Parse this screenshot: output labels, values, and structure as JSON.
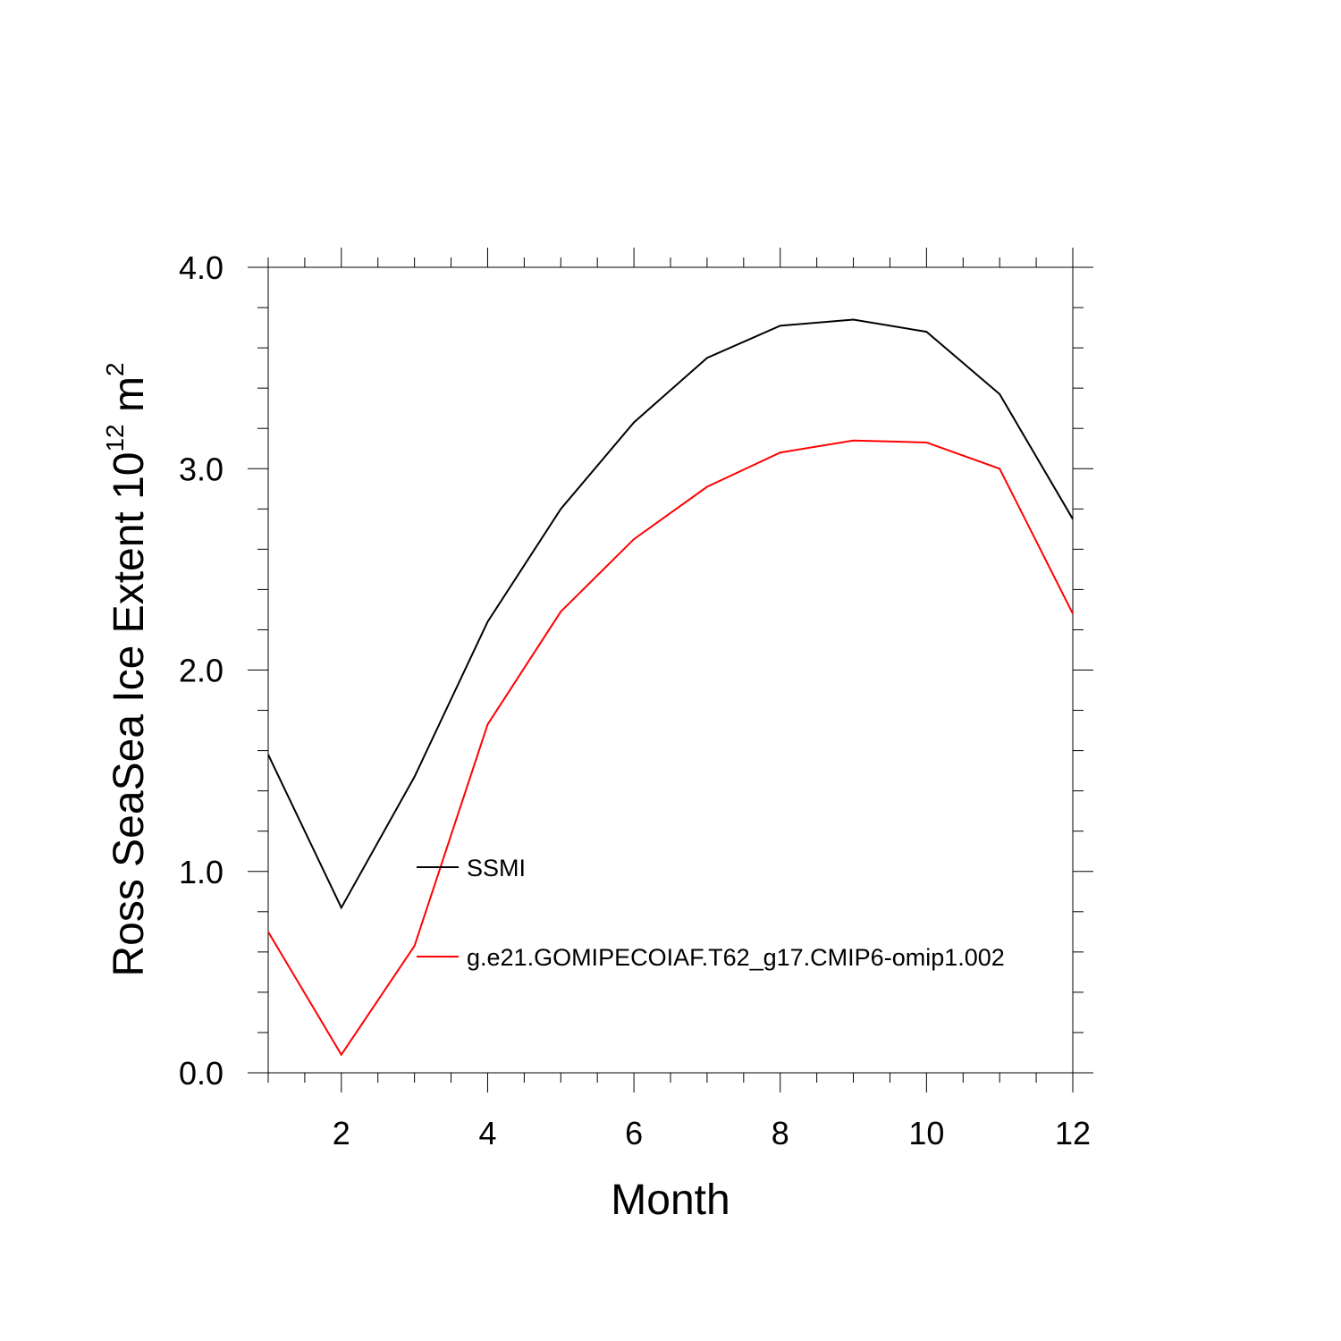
{
  "chart_data": {
    "type": "line",
    "xlabel": "Month",
    "ylabel": {
      "prefix": "Ross SeaSea Ice Extent 10",
      "exponent": "12",
      "unit": " m",
      "unit_exponent": "2"
    },
    "x": [
      1,
      2,
      3,
      4,
      5,
      6,
      7,
      8,
      9,
      10,
      11,
      12
    ],
    "xlim": [
      1,
      12
    ],
    "ylim": [
      0,
      4
    ],
    "x_ticks": [
      2,
      4,
      6,
      8,
      10,
      12
    ],
    "x_tick_labels": [
      "2",
      "4",
      "6",
      "8",
      "10",
      "12"
    ],
    "y_ticks": [
      0,
      1,
      2,
      3,
      4
    ],
    "y_tick_labels": [
      "0.0",
      "1.0",
      "2.0",
      "3.0",
      "4.0"
    ],
    "grid": false,
    "legend_position": "inside-center-left",
    "series": [
      {
        "name": "SSMI",
        "color": "#000000",
        "values": [
          1.58,
          0.82,
          1.47,
          2.24,
          2.8,
          3.23,
          3.55,
          3.71,
          3.74,
          3.68,
          3.37,
          2.75
        ]
      },
      {
        "name": "g.e21.GOMIPECOIAF.T62_g17.CMIP6-omip1.002",
        "color": "#ff0000",
        "values": [
          0.7,
          0.09,
          0.63,
          1.73,
          2.29,
          2.65,
          2.91,
          3.08,
          3.14,
          3.13,
          3.0,
          2.28
        ]
      }
    ]
  }
}
